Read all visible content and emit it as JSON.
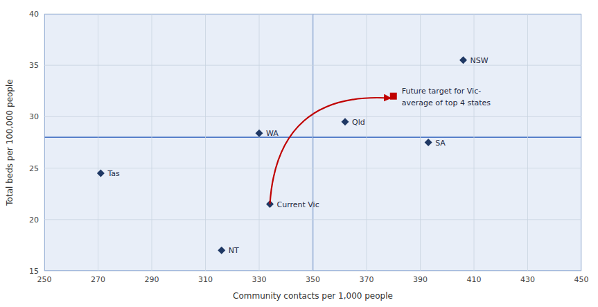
{
  "chart_data": {
    "type": "scatter",
    "xlabel": "Community contacts per 1,000 people",
    "ylabel": "Total beds per 100,000 people",
    "xlim": [
      250,
      450
    ],
    "ylim": [
      15,
      40
    ],
    "xticks": [
      250,
      270,
      290,
      310,
      330,
      350,
      370,
      390,
      410,
      430,
      450
    ],
    "yticks": [
      15,
      20,
      25,
      30,
      35,
      40
    ],
    "grid": true,
    "quadrants": {
      "x": 350,
      "y": 28,
      "color": "#4472c4"
    },
    "series": [
      {
        "x": [
          406,
          330,
          362,
          393,
          271,
          316,
          334
        ],
        "values": [
          35.5,
          28.4,
          29.5,
          27.5,
          24.5,
          17.0,
          21.5
        ],
        "labels": [
          "NSW",
          "WA",
          "Qld",
          "SA",
          "Tas",
          "NT",
          "Current Vic"
        ],
        "color": "#1f3864",
        "marker": "diamond"
      },
      {
        "x": [
          380
        ],
        "values": [
          32.0
        ],
        "labels": [
          [
            "Future target for Vic-",
            "average of top 4 states"
          ]
        ],
        "color": "#c00000",
        "marker": "square"
      }
    ],
    "arrow": {
      "x": [
        334,
        379
      ],
      "y": [
        21.5,
        31.8
      ],
      "color": "#c00000"
    }
  }
}
